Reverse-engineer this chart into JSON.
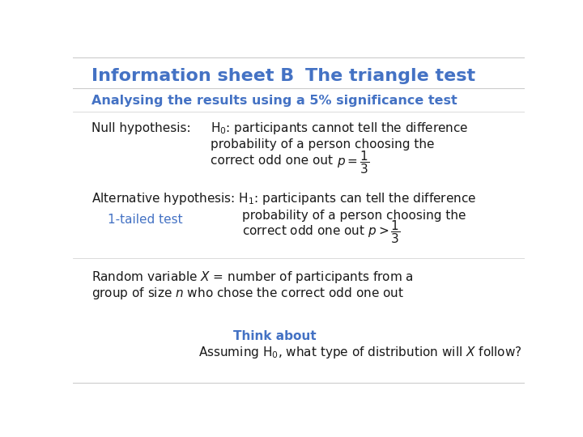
{
  "background_color": "#ffffff",
  "title_left": "Information sheet B",
  "title_right": "The triangle test",
  "title_color": "#4472c4",
  "title_fontsize": 16,
  "subtitle": "Analysing the results using a 5% significance test",
  "subtitle_color": "#4472c4",
  "subtitle_fontsize": 11.5,
  "body_color": "#1a1a1a",
  "body_fontsize": 11,
  "think_color": "#4472c4",
  "think_fontsize": 11,
  "border_color": "#cccccc"
}
